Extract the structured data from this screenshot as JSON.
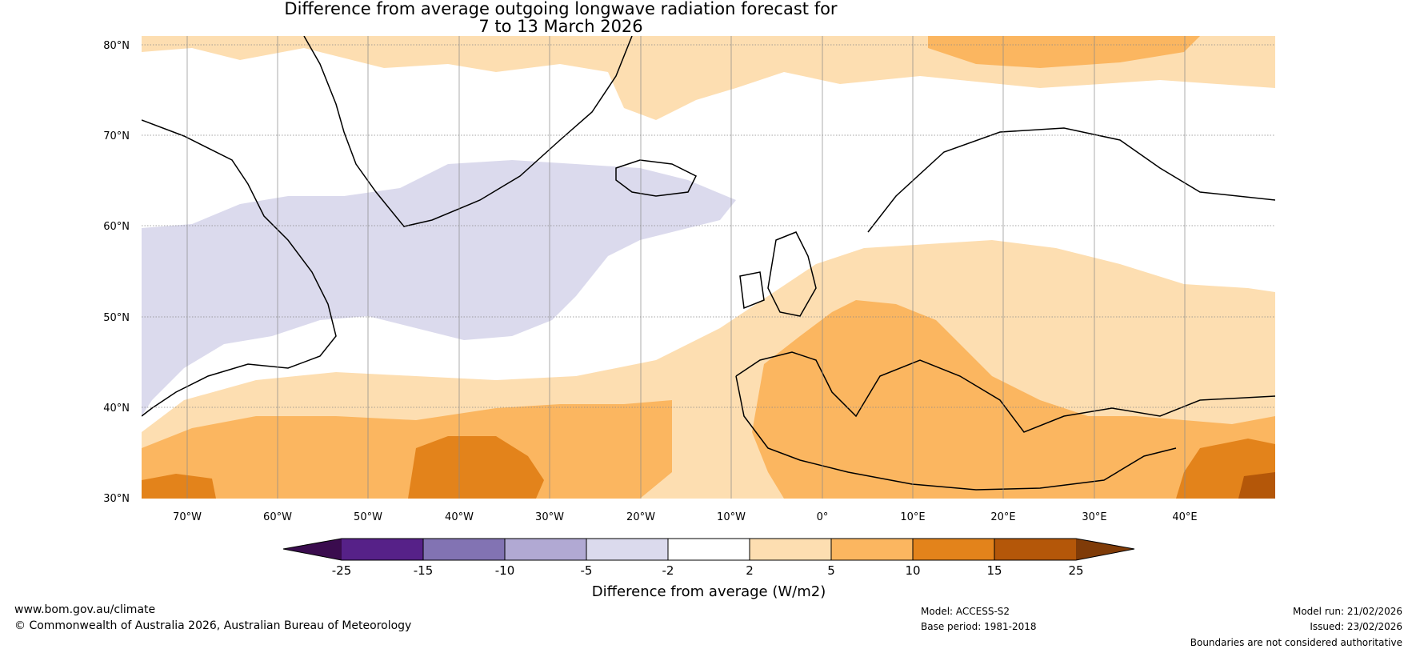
{
  "title": {
    "line1": "Difference from average outgoing longwave radiation forecast for",
    "line2": "7 to 13 March 2026"
  },
  "axes": {
    "lat_labels": [
      "80°N",
      "70°N",
      "60°N",
      "50°N",
      "40°N",
      "30°N"
    ],
    "lon_labels": [
      "70°W",
      "60°W",
      "50°W",
      "40°W",
      "30°W",
      "20°W",
      "10°W",
      "0°",
      "10°E",
      "20°E",
      "30°E",
      "40°E"
    ]
  },
  "colorbar": {
    "ticks": [
      "-25",
      "-15",
      "-10",
      "-5",
      "-2",
      "2",
      "5",
      "10",
      "15",
      "25"
    ],
    "colors": {
      "below_min": "#3a0c4e",
      "neg_25_15": "#562188",
      "neg_15_10": "#8273b3",
      "neg_10_5": "#b1a9d3",
      "neg_5_2": "#dbdaed",
      "neutral": "#ffffff",
      "pos_2_5": "#fddeb1",
      "pos_5_10": "#fbb660",
      "pos_10_15": "#e3831b",
      "pos_15_25": "#b45709",
      "above_max": "#7f3b08"
    },
    "label": "Difference from average (W/m2)"
  },
  "footer": {
    "website": "www.bom.gov.au/climate",
    "copyright": "© Commonwealth of Australia 2026, Australian Bureau of Meteorology",
    "model": "Model: ACCESS-S2",
    "base_period": "Base period: 1981-2018",
    "model_run": "Model run: 21/02/2026",
    "issued": "Issued: 23/02/2026",
    "disclaimer": "Boundaries are not considered authoritative"
  }
}
